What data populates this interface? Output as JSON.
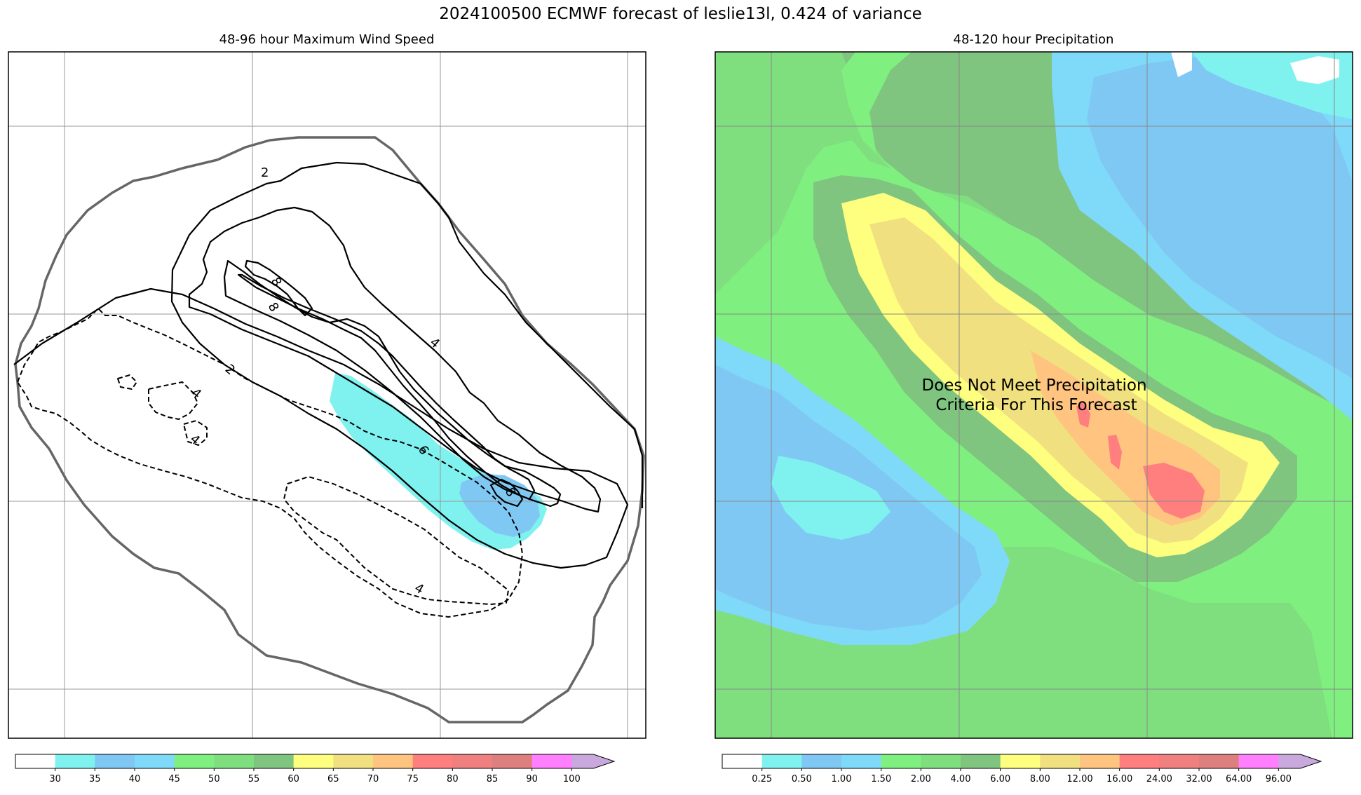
{
  "figure": {
    "title": "2024100500 ECMWF forecast of leslie13l, 0.424 of variance",
    "left_panel_title": "48-96 hour Maximum Wind Speed",
    "right_panel_title": "48-120 hour Precipitation",
    "overlay_note_line1": "Does Not Meet Precipitation",
    "overlay_note_line2": "Criteria For This Forecast"
  },
  "colors": {
    "wind_fill_35": "#7ff2ef",
    "wind_fill_40": "#7fc8f3",
    "envelope": "#666666",
    "grid": "#999999"
  },
  "chart_data": [
    {
      "type": "heatmap",
      "title": "48-96 hour Maximum Wind Speed",
      "variable": "maximum wind speed",
      "overlays": "solid contours positive (2, 4, 6, 8), dashed contours negative (-2, -4), grey outline = ensemble envelope",
      "contour_labels": [
        "2",
        "4",
        "6",
        "8",
        "8",
        "2",
        "4",
        "4",
        "4",
        "6",
        "8"
      ],
      "colorbar": {
        "ticks": [
          "30",
          "35",
          "40",
          "45",
          "50",
          "55",
          "60",
          "65",
          "70",
          "75",
          "80",
          "85",
          "90",
          "100"
        ],
        "colors": [
          "#ffffff",
          "#7ff2ef",
          "#7fc8f3",
          "#7fd9f9",
          "#7ff07f",
          "#7fdf7f",
          "#7fc47f",
          "#ffff7f",
          "#f0e07f",
          "#ffc47f",
          "#ff7f7f",
          "#f07f7f",
          "#dd7f7f",
          "#ff7fff",
          "#c8a8dd"
        ],
        "extend": "max"
      }
    },
    {
      "type": "heatmap",
      "title": "48-120 hour Precipitation",
      "variable": "accumulated precipitation",
      "max_region_class": "16.00-24.00",
      "colorbar": {
        "ticks": [
          "0.25",
          "0.50",
          "1.00",
          "1.50",
          "2.00",
          "4.00",
          "6.00",
          "8.00",
          "12.00",
          "16.00",
          "24.00",
          "32.00",
          "64.00",
          "96.00"
        ],
        "colors": [
          "#ffffff",
          "#7ff2ef",
          "#7fc8f3",
          "#7fd9f9",
          "#7ff07f",
          "#7fdf7f",
          "#7fc47f",
          "#ffff7f",
          "#f0e07f",
          "#ffc47f",
          "#ff7f7f",
          "#f07f7f",
          "#dd7f7f",
          "#ff7fff",
          "#c8a8dd"
        ],
        "extend": "max"
      }
    }
  ]
}
